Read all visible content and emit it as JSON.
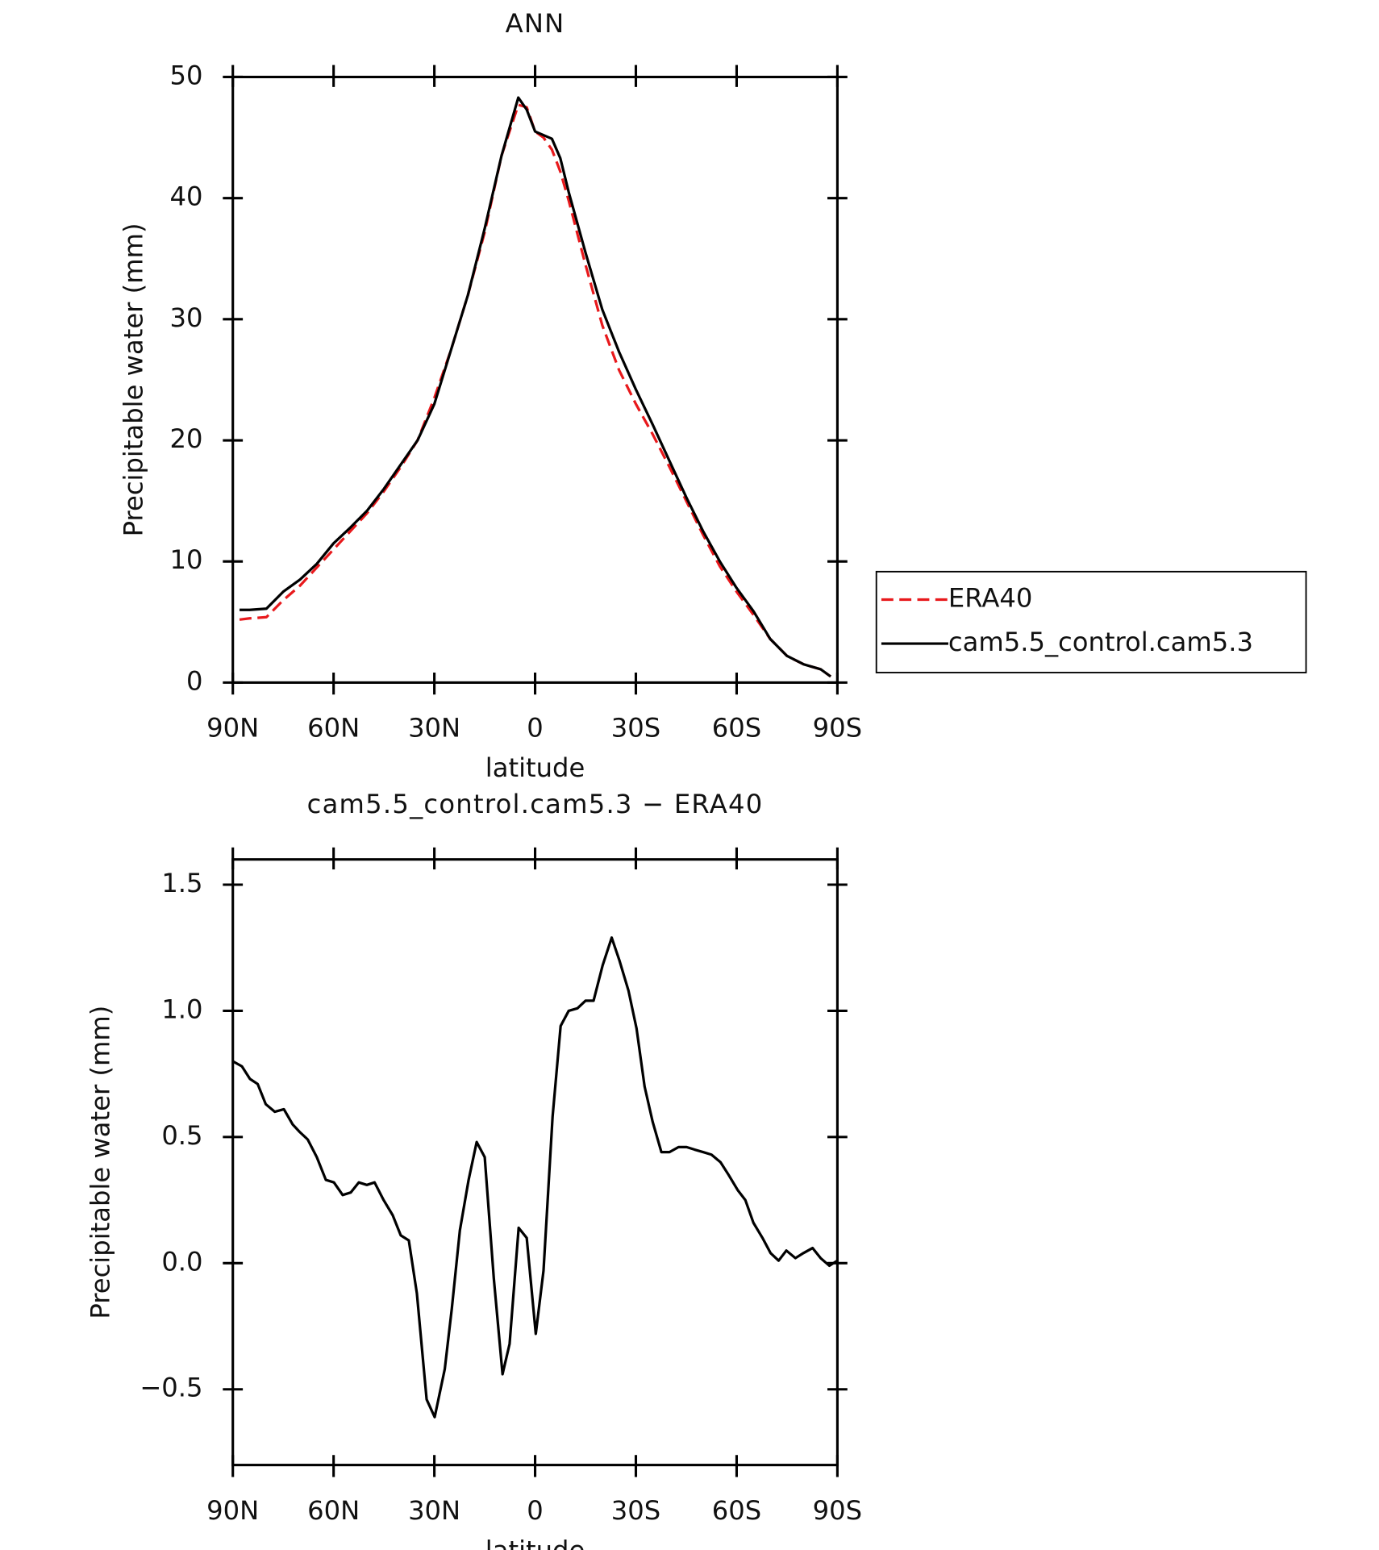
{
  "chart_data": [
    {
      "type": "line",
      "title": "ANN",
      "xlabel": "latitude",
      "ylabel": "Precipitable water (mm)",
      "x": [
        88,
        85,
        80,
        75,
        70,
        65,
        60,
        55,
        50,
        45,
        40,
        35,
        30,
        25,
        20,
        15,
        10,
        5,
        2.5,
        0,
        -2.5,
        -5,
        -7.5,
        -10,
        -15,
        -20,
        -25,
        -30,
        -35,
        -40,
        -45,
        -50,
        -55,
        -60,
        -65,
        -70,
        -75,
        -80,
        -85,
        -88
      ],
      "series": [
        {
          "name": "ERA40",
          "color": "#e8191c",
          "style": "dashed",
          "values": [
            5.2,
            5.3,
            5.4,
            6.8,
            8.0,
            9.5,
            11.0,
            12.5,
            14.0,
            15.8,
            17.8,
            20.0,
            23.5,
            27.5,
            32.0,
            37.2,
            43.5,
            47.7,
            47.5,
            45.5,
            45.0,
            44.0,
            42.2,
            39.8,
            34.5,
            29.5,
            25.8,
            23.0,
            20.5,
            17.8,
            15.0,
            12.2,
            9.6,
            7.5,
            5.6,
            3.6,
            2.2,
            1.5,
            1.1,
            0.5
          ]
        },
        {
          "name": "cam5.5_control.cam5.3",
          "color": "#000000",
          "style": "solid",
          "values": [
            6.0,
            6.0,
            6.1,
            7.5,
            8.5,
            9.8,
            11.5,
            12.8,
            14.2,
            16.0,
            18.0,
            20.0,
            23.0,
            27.5,
            32.0,
            37.5,
            43.5,
            48.3,
            47.3,
            45.5,
            45.2,
            44.9,
            43.3,
            40.5,
            35.5,
            30.8,
            27.3,
            24.2,
            21.3,
            18.3,
            15.3,
            12.5,
            10.0,
            7.8,
            5.9,
            3.6,
            2.2,
            1.5,
            1.1,
            0.5
          ]
        }
      ],
      "xlim": [
        90,
        -90
      ],
      "xticks": [
        {
          "value": 90,
          "label": "90N"
        },
        {
          "value": 60,
          "label": "60N"
        },
        {
          "value": 30,
          "label": "30N"
        },
        0,
        {
          "value": -30,
          "label": "30S"
        },
        {
          "value": -60,
          "label": "60S"
        },
        {
          "value": -90,
          "label": "90S"
        }
      ],
      "ylim": [
        0,
        50
      ],
      "yticks": [
        0,
        10,
        20,
        30,
        40,
        50
      ],
      "legend": "right"
    },
    {
      "type": "line",
      "title": "cam5.5_control.cam5.3 − ERA40",
      "xlabel": "latitude",
      "ylabel": "Precipitable water (mm)",
      "x": [
        90,
        87.3,
        84.9,
        82.6,
        80.2,
        77.5,
        74.8,
        72.2,
        70.1,
        67.7,
        65.0,
        62.3,
        59.9,
        57.3,
        54.9,
        52.5,
        50.1,
        47.8,
        45.1,
        42.4,
        40.0,
        37.6,
        35.2,
        32.3,
        29.9,
        26.9,
        24.8,
        22.4,
        19.8,
        17.4,
        15.0,
        12.3,
        9.7,
        7.6,
        4.9,
        2.5,
        -0.2,
        -2.5,
        -5.2,
        -7.6,
        -10.0,
        -12.6,
        -15.0,
        -17.4,
        -20.1,
        -22.8,
        -25.1,
        -27.8,
        -30.2,
        -32.6,
        -35.0,
        -37.6,
        -40.0,
        -42.7,
        -45.1,
        -47.5,
        -50.1,
        -52.5,
        -55.2,
        -57.6,
        -60.3,
        -62.6,
        -65.0,
        -67.7,
        -70.1,
        -72.5,
        -74.8,
        -77.5,
        -79.9,
        -82.6,
        -85.0,
        -87.6,
        -90
      ],
      "series": [
        {
          "name": "cam5.5_control.cam5.3 − ERA40",
          "color": "#000000",
          "style": "solid",
          "values": [
            0.8,
            0.78,
            0.73,
            0.71,
            0.63,
            0.6,
            0.61,
            0.55,
            0.52,
            0.49,
            0.42,
            0.33,
            0.32,
            0.27,
            0.28,
            0.32,
            0.31,
            0.32,
            0.25,
            0.19,
            0.11,
            0.09,
            -0.12,
            -0.54,
            -0.61,
            -0.42,
            -0.18,
            0.13,
            0.33,
            0.48,
            0.42,
            -0.06,
            -0.44,
            -0.32,
            0.14,
            0.1,
            -0.28,
            -0.03,
            0.58,
            0.94,
            1.0,
            1.01,
            1.04,
            1.04,
            1.18,
            1.29,
            1.2,
            1.08,
            0.93,
            0.7,
            0.56,
            0.44,
            0.44,
            0.46,
            0.46,
            0.45,
            0.44,
            0.43,
            0.4,
            0.35,
            0.29,
            0.25,
            0.16,
            0.1,
            0.04,
            0.01,
            0.05,
            0.02,
            0.04,
            0.06,
            0.02,
            -0.01,
            0.01
          ]
        }
      ],
      "xlim": [
        90,
        -90
      ],
      "xticks": [
        {
          "value": 90,
          "label": "90N"
        },
        {
          "value": 60,
          "label": "60N"
        },
        {
          "value": 30,
          "label": "30N"
        },
        0,
        {
          "value": -30,
          "label": "30S"
        },
        {
          "value": -60,
          "label": "60S"
        },
        {
          "value": -90,
          "label": "90S"
        }
      ],
      "ylim": [
        -0.8,
        1.6
      ],
      "yticks": [
        {
          "value": -0.5,
          "label": "−0.5"
        },
        {
          "value": 0,
          "label": "0.0"
        },
        0.5,
        {
          "value": 1,
          "label": "1.0"
        },
        1.5
      ]
    }
  ]
}
